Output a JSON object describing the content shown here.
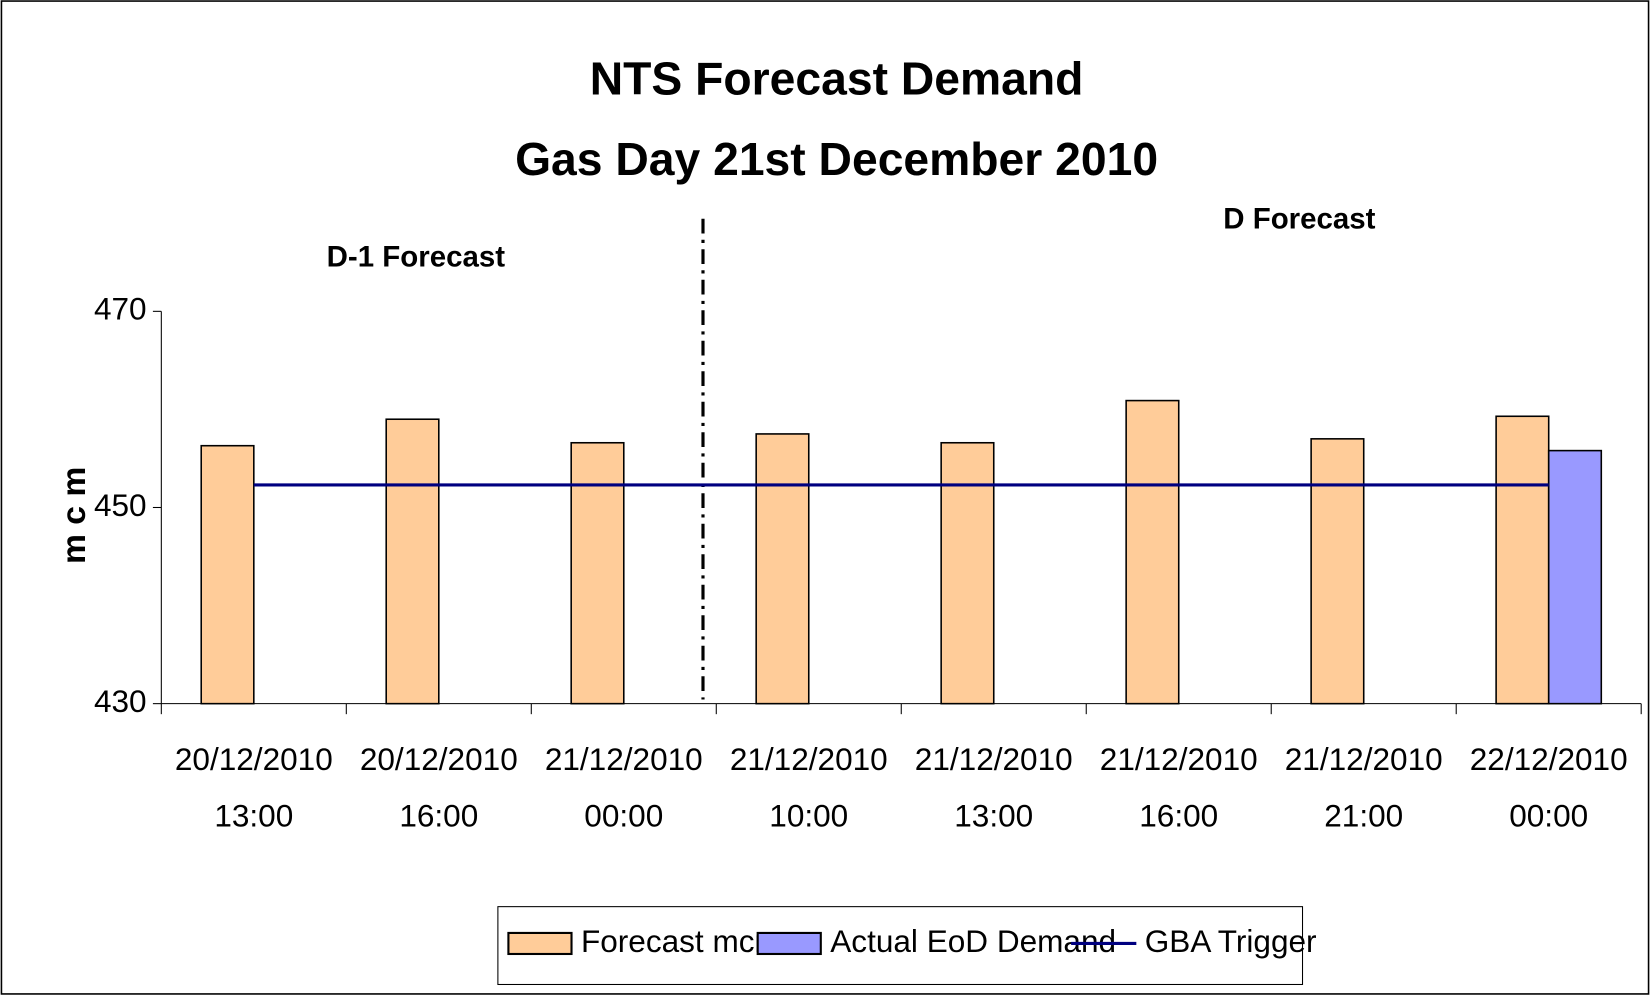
{
  "chart_data": {
    "type": "bar",
    "title": "NTS Forecast Demand",
    "subtitle": "Gas Day 21st December 2010",
    "y_label": "m c m",
    "annotations": [
      "D-1 Forecast",
      "D Forecast"
    ],
    "categories": [
      [
        "20/12/2010",
        "13:00"
      ],
      [
        "20/12/2010",
        "16:00"
      ],
      [
        "21/12/2010",
        "00:00"
      ],
      [
        "21/12/2010",
        "10:00"
      ],
      [
        "21/12/2010",
        "13:00"
      ],
      [
        "21/12/2010",
        "16:00"
      ],
      [
        "21/12/2010",
        "21:00"
      ],
      [
        "22/12/2010",
        "00:00"
      ]
    ],
    "series": [
      {
        "name": "Forecast mcm",
        "type": "bar",
        "color": "#ffcc99",
        "values": [
          456.3,
          459,
          456.6,
          457.5,
          456.6,
          460.9,
          457,
          459.3
        ]
      },
      {
        "name": "Actual EoD Demand",
        "type": "bar",
        "color": "#9999ff",
        "values": [
          null,
          null,
          null,
          null,
          null,
          null,
          null,
          455.8
        ]
      },
      {
        "name": "GBA Trigger",
        "type": "line",
        "color": "#000080",
        "values": [
          452.3,
          452.3,
          452.3,
          452.3,
          452.3,
          452.3,
          452.3,
          452.3
        ]
      }
    ],
    "ylim": [
      430,
      470
    ],
    "yticks": [
      430,
      450,
      470
    ],
    "grid": false
  }
}
